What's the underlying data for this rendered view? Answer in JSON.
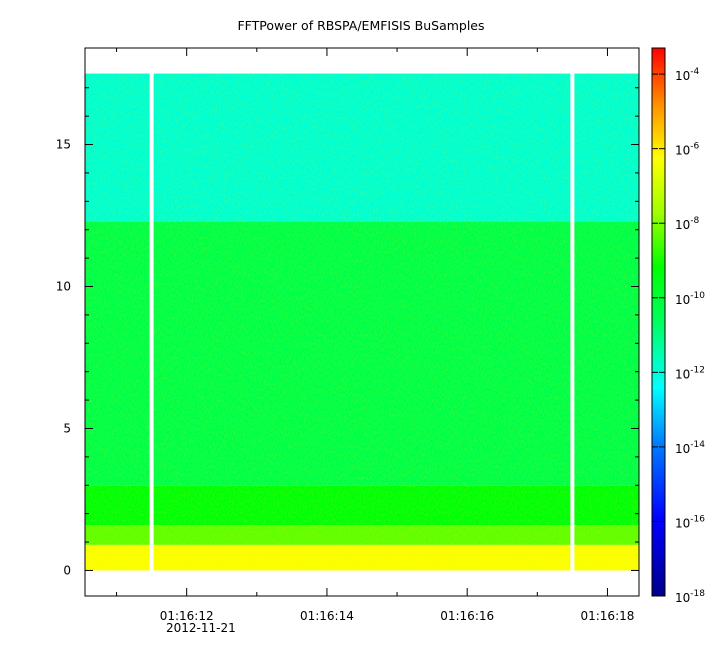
{
  "chart_data": {
    "type": "heatmap",
    "title": "FFTPower of RBSPA/EMFISIS  BuSamples",
    "date_label": "2012-11-21",
    "x": {
      "tick_labels": [
        "01:16:12",
        "01:16:14",
        "01:16:16",
        "01:16:18"
      ],
      "tick_seconds": [
        12,
        14,
        16,
        18
      ],
      "range_seconds": [
        10.55,
        18.45
      ],
      "minor_tick_seconds": [
        11,
        13,
        15,
        17
      ]
    },
    "y": {
      "tick_labels": [
        "0",
        "5",
        "10",
        "15"
      ],
      "tick_values": [
        0,
        5,
        10,
        15
      ],
      "range": [
        -0.9,
        18.4
      ],
      "data_max": 17.5
    },
    "colorbar": {
      "scale": "log",
      "range": [
        -18,
        -3.3
      ],
      "tick_base": "10",
      "tick_exponents": [
        "-4",
        "-6",
        "-8",
        "-10",
        "-12",
        "-14",
        "-16",
        "-18"
      ],
      "tick_values": [
        -4,
        -6,
        -8,
        -10,
        -12,
        -14,
        -16,
        -18
      ]
    },
    "data_gaps_seconds": [
      11.5,
      17.5
    ],
    "bands": [
      {
        "y_from": 12.3,
        "y_to": 17.5,
        "log_power": -11.9
      },
      {
        "y_from": 3.0,
        "y_to": 12.3,
        "log_power": -10.3
      },
      {
        "y_from": 1.6,
        "y_to": 3.0,
        "log_power": -9.3
      },
      {
        "y_from": 0.9,
        "y_to": 1.6,
        "log_power": -8.3
      },
      {
        "y_from": 0.0,
        "y_to": 0.9,
        "log_power": -6.3
      }
    ],
    "colors": {
      "dark_blue": "#00008b",
      "blue": "#0000ff",
      "cyan": "#00ffff",
      "green": "#00ff00",
      "yellow": "#ffff00",
      "orange": "#ff8c00",
      "red": "#ff0000",
      "grid_gap": "#ffffff"
    }
  }
}
